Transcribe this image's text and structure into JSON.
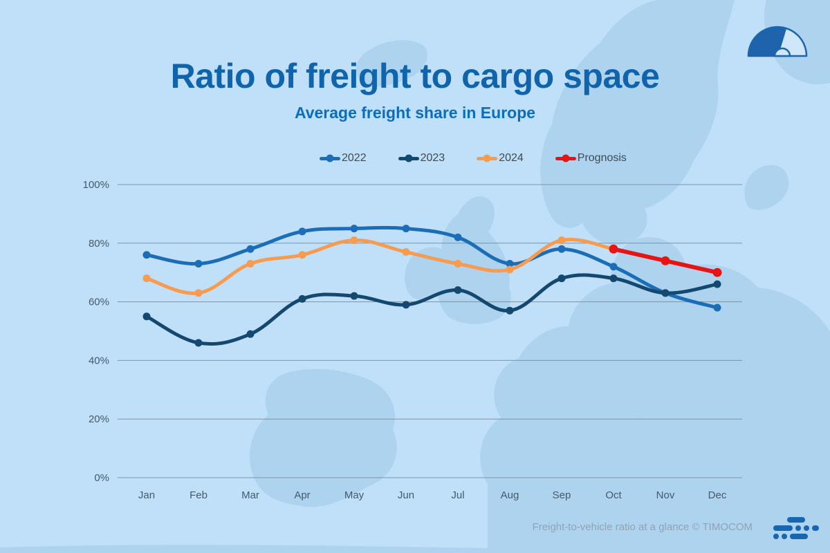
{
  "header": {
    "title": "Ratio of freight to cargo space",
    "subtitle": "Average freight share in Europe"
  },
  "footer": {
    "credit": "Freight-to-vehicle ratio at a glance © TIMOCOM"
  },
  "branding": {
    "gauge_icon": "gauge-semicircle-icon",
    "logo_icon": "timocom-bars-icon",
    "logo_color": "#1866b0",
    "gauge_color": "#1d64ad"
  },
  "page_colors": {
    "background": "#bfe0f8",
    "map_silhouette": "#aed3ee",
    "title_blue": "#0f64ab",
    "subtitle_blue": "#0b6dbe"
  },
  "chart_data": {
    "type": "line",
    "title": "Ratio of freight to cargo space",
    "subtitle": "Average freight share in Europe",
    "categories": [
      "Jan",
      "Feb",
      "Mar",
      "Apr",
      "May",
      "Jun",
      "Jul",
      "Aug",
      "Sep",
      "Oct",
      "Nov",
      "Dec"
    ],
    "ylim": [
      0,
      100
    ],
    "ytick_values": [
      0,
      20,
      40,
      60,
      80,
      100
    ],
    "ytick_labels": [
      "0%",
      "20%",
      "40%",
      "60%",
      "80%",
      "100%"
    ],
    "grid": "horizontal",
    "legend_position": "top",
    "axis_color": "#44596b",
    "grid_color": "#7e93a3",
    "series": [
      {
        "name": "2022",
        "color": "#1a6db6",
        "values": [
          76,
          73,
          78,
          84,
          85,
          85,
          82,
          73,
          78,
          72,
          63,
          58
        ]
      },
      {
        "name": "2023",
        "color": "#14486f",
        "values": [
          55,
          46,
          49,
          61,
          62,
          59,
          64,
          57,
          68,
          68,
          63,
          66
        ]
      },
      {
        "name": "2024",
        "color": "#f79b51",
        "values": [
          68,
          63,
          73,
          76,
          81,
          77,
          73,
          71,
          81,
          78
        ],
        "marker_count": 9
      },
      {
        "name": "Prognosis",
        "color": "#e81414",
        "values": [
          78,
          74,
          70
        ],
        "start_index": 9,
        "line_width": 6
      }
    ]
  }
}
